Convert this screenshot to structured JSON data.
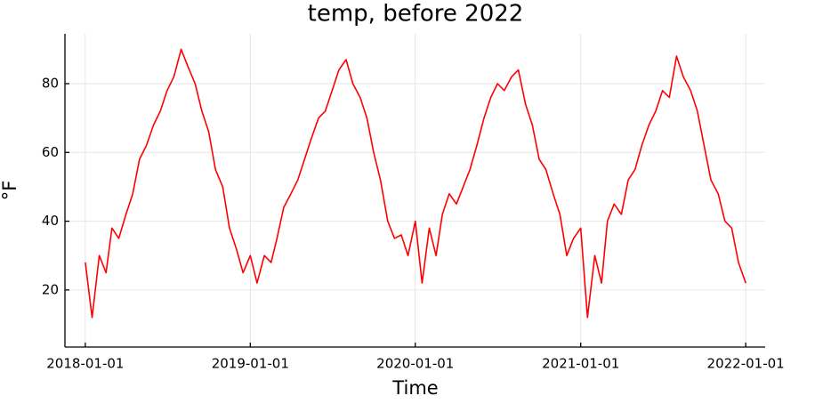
{
  "chart_data": {
    "type": "line",
    "title": "temp, before 2022",
    "x_label": "Time",
    "y_label": "°F",
    "color": "#ff0000",
    "grid": true,
    "xlim": [
      "2017-11-17",
      "2022-02-13"
    ],
    "ylim": [
      3.4,
      94.5
    ],
    "xticks": [
      "2018-01-01",
      "2019-01-01",
      "2020-01-01",
      "2021-01-01",
      "2022-01-01"
    ],
    "yticks": [
      20,
      40,
      60,
      80
    ],
    "x": [
      "2018-01-01",
      "2018-01-16",
      "2018-02-01",
      "2018-02-16",
      "2018-03-01",
      "2018-03-16",
      "2018-04-01",
      "2018-04-16",
      "2018-05-01",
      "2018-05-16",
      "2018-06-01",
      "2018-06-16",
      "2018-07-01",
      "2018-07-16",
      "2018-08-01",
      "2018-08-16",
      "2018-09-01",
      "2018-09-16",
      "2018-10-01",
      "2018-10-16",
      "2018-11-01",
      "2018-11-16",
      "2018-12-01",
      "2018-12-16",
      "2019-01-01",
      "2019-01-16",
      "2019-02-01",
      "2019-02-16",
      "2019-03-01",
      "2019-03-16",
      "2019-04-01",
      "2019-04-16",
      "2019-05-01",
      "2019-05-16",
      "2019-06-01",
      "2019-06-16",
      "2019-07-01",
      "2019-07-16",
      "2019-08-01",
      "2019-08-16",
      "2019-09-01",
      "2019-09-16",
      "2019-10-01",
      "2019-10-16",
      "2019-11-01",
      "2019-11-16",
      "2019-12-01",
      "2019-12-16",
      "2020-01-01",
      "2020-01-16",
      "2020-02-01",
      "2020-02-16",
      "2020-03-01",
      "2020-03-16",
      "2020-04-01",
      "2020-04-16",
      "2020-05-01",
      "2020-05-16",
      "2020-06-01",
      "2020-06-16",
      "2020-07-01",
      "2020-07-16",
      "2020-08-01",
      "2020-08-16",
      "2020-09-01",
      "2020-09-16",
      "2020-10-01",
      "2020-10-16",
      "2020-11-01",
      "2020-11-16",
      "2020-12-01",
      "2020-12-16",
      "2021-01-01",
      "2021-01-16",
      "2021-02-01",
      "2021-02-16",
      "2021-03-01",
      "2021-03-16",
      "2021-04-01",
      "2021-04-16",
      "2021-05-01",
      "2021-05-16",
      "2021-06-01",
      "2021-06-16",
      "2021-07-01",
      "2021-07-16",
      "2021-08-01",
      "2021-08-16",
      "2021-09-01",
      "2021-09-16",
      "2021-10-01",
      "2021-10-16",
      "2021-11-01",
      "2021-11-16",
      "2021-12-01",
      "2021-12-16",
      "2022-01-01"
    ],
    "values": [
      28,
      12,
      30,
      25,
      38,
      35,
      42,
      48,
      58,
      62,
      68,
      72,
      78,
      82,
      90,
      85,
      80,
      72,
      66,
      55,
      50,
      38,
      32,
      25,
      30,
      22,
      30,
      28,
      35,
      44,
      48,
      52,
      58,
      64,
      70,
      72,
      78,
      84,
      87,
      80,
      76,
      70,
      60,
      52,
      40,
      35,
      36,
      30,
      40,
      22,
      38,
      30,
      42,
      48,
      45,
      50,
      55,
      62,
      70,
      76,
      80,
      78,
      82,
      84,
      74,
      68,
      58,
      55,
      48,
      42,
      30,
      35,
      38,
      12,
      30,
      22,
      40,
      45,
      42,
      52,
      55,
      62,
      68,
      72,
      78,
      76,
      88,
      82,
      78,
      72,
      62,
      52,
      48,
      40,
      38,
      28,
      22
    ]
  }
}
